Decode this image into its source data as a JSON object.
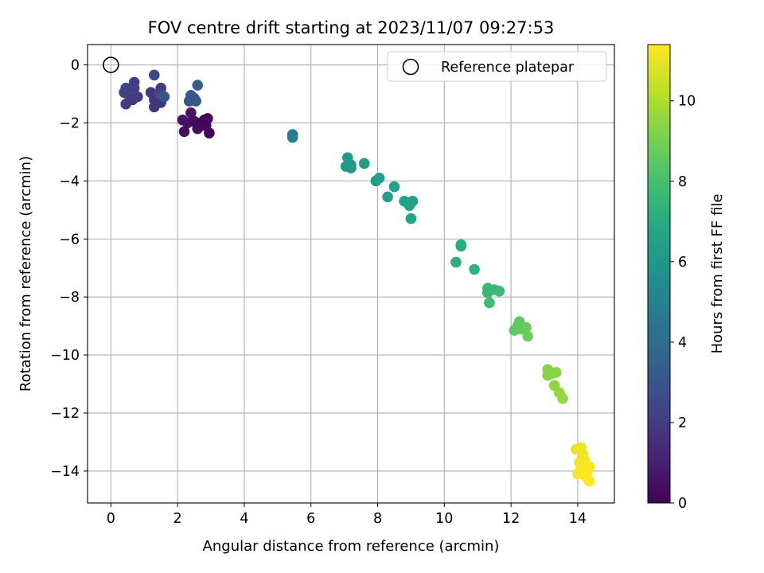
{
  "chart_data": {
    "type": "scatter",
    "title": "FOV centre drift starting at 2023/11/07 09:27:53",
    "xlabel": "Angular distance from reference (arcmin)",
    "ylabel": "Rotation from reference (arcmin)",
    "xlim": [
      -0.7,
      15.1
    ],
    "ylim": [
      -15.1,
      0.7
    ],
    "xticks": [
      0,
      2,
      4,
      6,
      8,
      10,
      12,
      14
    ],
    "yticks": [
      0,
      -2,
      -4,
      -6,
      -8,
      -10,
      -12,
      -14
    ],
    "grid": true,
    "legend": {
      "position": "top-right",
      "entries": [
        "Reference platepar"
      ]
    },
    "reference_point": {
      "x": 0,
      "y": 0,
      "label": "Reference platepar",
      "marker": "open-circle"
    },
    "colorbar": {
      "label": "Hours from first FF file",
      "colormap": "viridis",
      "range": [
        0,
        11.4
      ],
      "ticks": [
        0,
        2,
        4,
        6,
        8,
        10
      ]
    },
    "points": [
      {
        "x": 0.45,
        "y": -0.8,
        "h": 2.3
      },
      {
        "x": 0.4,
        "y": -0.95,
        "h": 2.2
      },
      {
        "x": 0.5,
        "y": -1.0,
        "h": 2.2
      },
      {
        "x": 0.45,
        "y": -1.35,
        "h": 2.0
      },
      {
        "x": 0.7,
        "y": -0.6,
        "h": 2.0
      },
      {
        "x": 0.7,
        "y": -0.8,
        "h": 2.1
      },
      {
        "x": 0.65,
        "y": -1.2,
        "h": 1.9
      },
      {
        "x": 0.8,
        "y": -1.1,
        "h": 2.0
      },
      {
        "x": 1.3,
        "y": -0.35,
        "h": 2.4
      },
      {
        "x": 1.2,
        "y": -0.95,
        "h": 1.9
      },
      {
        "x": 1.3,
        "y": -1.2,
        "h": 1.8
      },
      {
        "x": 1.3,
        "y": -1.45,
        "h": 1.8
      },
      {
        "x": 1.45,
        "y": -1.0,
        "h": 2.4
      },
      {
        "x": 1.5,
        "y": -0.8,
        "h": 2.0
      },
      {
        "x": 1.5,
        "y": -1.3,
        "h": 1.8
      },
      {
        "x": 1.55,
        "y": -1.05,
        "h": 2.8
      },
      {
        "x": 1.6,
        "y": -1.1,
        "h": 3.0
      },
      {
        "x": 2.15,
        "y": -1.9,
        "h": 0.6
      },
      {
        "x": 2.2,
        "y": -2.3,
        "h": 0.5
      },
      {
        "x": 2.3,
        "y": -2.0,
        "h": 0.5
      },
      {
        "x": 2.4,
        "y": -1.65,
        "h": 0.6
      },
      {
        "x": 2.5,
        "y": -1.95,
        "h": 0.4
      },
      {
        "x": 2.6,
        "y": -2.2,
        "h": 0.3
      },
      {
        "x": 2.7,
        "y": -2.0,
        "h": 0.3
      },
      {
        "x": 2.8,
        "y": -1.9,
        "h": 0.2
      },
      {
        "x": 2.85,
        "y": -2.1,
        "h": 0.2
      },
      {
        "x": 2.9,
        "y": -1.85,
        "h": 0.1
      },
      {
        "x": 2.95,
        "y": -2.35,
        "h": 0.1
      },
      {
        "x": 2.35,
        "y": -1.25,
        "h": 3.0
      },
      {
        "x": 2.4,
        "y": -1.05,
        "h": 3.2
      },
      {
        "x": 2.5,
        "y": -1.15,
        "h": 3.0
      },
      {
        "x": 2.55,
        "y": -1.25,
        "h": 3.1
      },
      {
        "x": 2.6,
        "y": -0.7,
        "h": 3.3
      },
      {
        "x": 5.45,
        "y": -2.4,
        "h": 4.8
      },
      {
        "x": 5.45,
        "y": -2.5,
        "h": 4.9
      },
      {
        "x": 7.1,
        "y": -3.2,
        "h": 6.1
      },
      {
        "x": 7.05,
        "y": -3.5,
        "h": 6.0
      },
      {
        "x": 7.2,
        "y": -3.55,
        "h": 6.0
      },
      {
        "x": 7.2,
        "y": -3.45,
        "h": 6.2
      },
      {
        "x": 7.6,
        "y": -3.4,
        "h": 6.3
      },
      {
        "x": 7.95,
        "y": -4.0,
        "h": 6.2
      },
      {
        "x": 8.05,
        "y": -3.9,
        "h": 6.3
      },
      {
        "x": 8.3,
        "y": -4.55,
        "h": 6.4
      },
      {
        "x": 8.5,
        "y": -4.2,
        "h": 6.5
      },
      {
        "x": 8.8,
        "y": -4.7,
        "h": 6.5
      },
      {
        "x": 8.95,
        "y": -4.85,
        "h": 6.6
      },
      {
        "x": 9.05,
        "y": -4.7,
        "h": 6.6
      },
      {
        "x": 9.0,
        "y": -5.3,
        "h": 6.7
      },
      {
        "x": 10.5,
        "y": -6.2,
        "h": 7.0
      },
      {
        "x": 10.5,
        "y": -6.25,
        "h": 7.1
      },
      {
        "x": 10.35,
        "y": -6.8,
        "h": 7.2
      },
      {
        "x": 10.9,
        "y": -7.05,
        "h": 7.3
      },
      {
        "x": 11.3,
        "y": -7.7,
        "h": 7.6
      },
      {
        "x": 11.3,
        "y": -7.85,
        "h": 7.6
      },
      {
        "x": 11.5,
        "y": -7.75,
        "h": 7.7
      },
      {
        "x": 11.65,
        "y": -7.8,
        "h": 7.7
      },
      {
        "x": 11.35,
        "y": -8.2,
        "h": 7.8
      },
      {
        "x": 12.1,
        "y": -9.15,
        "h": 8.5
      },
      {
        "x": 12.2,
        "y": -9.0,
        "h": 8.5
      },
      {
        "x": 12.25,
        "y": -8.85,
        "h": 8.6
      },
      {
        "x": 12.3,
        "y": -9.1,
        "h": 8.6
      },
      {
        "x": 12.45,
        "y": -9.05,
        "h": 8.7
      },
      {
        "x": 12.5,
        "y": -9.35,
        "h": 8.8
      },
      {
        "x": 13.1,
        "y": -10.5,
        "h": 9.3
      },
      {
        "x": 13.1,
        "y": -10.7,
        "h": 9.4
      },
      {
        "x": 13.2,
        "y": -10.65,
        "h": 9.4
      },
      {
        "x": 13.35,
        "y": -10.6,
        "h": 9.4
      },
      {
        "x": 13.3,
        "y": -11.05,
        "h": 9.5
      },
      {
        "x": 13.45,
        "y": -11.3,
        "h": 9.6
      },
      {
        "x": 13.55,
        "y": -11.5,
        "h": 9.6
      },
      {
        "x": 13.95,
        "y": -13.25,
        "h": 11.0
      },
      {
        "x": 14.1,
        "y": -13.2,
        "h": 11.1
      },
      {
        "x": 14.15,
        "y": -13.4,
        "h": 11.1
      },
      {
        "x": 14.2,
        "y": -13.6,
        "h": 11.2
      },
      {
        "x": 14.05,
        "y": -13.7,
        "h": 11.2
      },
      {
        "x": 14.1,
        "y": -13.9,
        "h": 11.2
      },
      {
        "x": 14.25,
        "y": -13.8,
        "h": 11.3
      },
      {
        "x": 14.35,
        "y": -13.85,
        "h": 11.3
      },
      {
        "x": 14.3,
        "y": -14.0,
        "h": 11.3
      },
      {
        "x": 14.0,
        "y": -14.1,
        "h": 11.3
      },
      {
        "x": 14.15,
        "y": -14.1,
        "h": 11.4
      },
      {
        "x": 14.25,
        "y": -14.2,
        "h": 11.4
      },
      {
        "x": 14.35,
        "y": -14.35,
        "h": 11.4
      }
    ]
  }
}
